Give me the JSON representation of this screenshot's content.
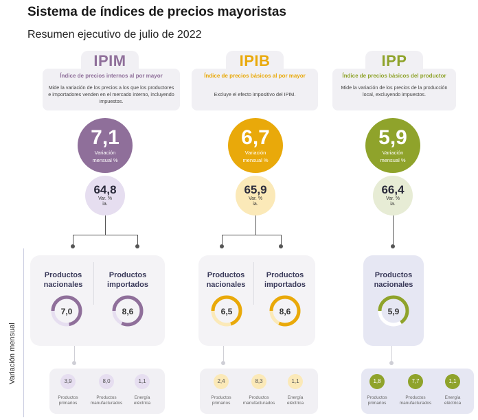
{
  "header": {
    "title": "Sistema de índices de precios mayoristas",
    "subtitle": "Resumen ejecutivo de julio de 2022"
  },
  "side_label": "Variación mensual",
  "colors": {
    "ipim": "#8f6f9a",
    "ipib": "#e9a90a",
    "ipp": "#8fa32b",
    "ipim_light": "#e6def0",
    "ipib_light": "#fbe9b8",
    "ipp_light": "#e7ecd5",
    "ipp_panel": "#e6e7f3"
  },
  "indices": [
    {
      "abbr": "IPIM",
      "name": "Índice de precios internos al por mayor",
      "description": "Mide la variación de los precios a los que los productores e importadores venden en el mercado interno, incluyendo impuestos.",
      "monthly_value": "7,1",
      "monthly_label_line1": "Variación",
      "monthly_label_line2": "mensual %",
      "yoy_value": "64,8",
      "yoy_label_line1": "Var. %",
      "yoy_label_line2": "ia.",
      "products": [
        {
          "title_line1": "Productos",
          "title_line2": "nacionales",
          "value": "7,0",
          "level": 0.72
        },
        {
          "title_line1": "Productos",
          "title_line2": "importados",
          "value": "8,6",
          "level": 0.82
        }
      ],
      "subproducts": [
        {
          "value": "3,9",
          "label_line1": "Productos",
          "label_line2": "primarios"
        },
        {
          "value": "8,0",
          "label_line1": "Productos",
          "label_line2": "manufacturados"
        },
        {
          "value": "1,1",
          "label_line1": "Energía",
          "label_line2": "eléctrica"
        }
      ]
    },
    {
      "abbr": "IPIB",
      "name": "Índice de precios básicos al por mayor",
      "description": "Excluye el efecto impositivo del IPIM.",
      "monthly_value": "6,7",
      "monthly_label_line1": "Variación",
      "monthly_label_line2": "mensual %",
      "yoy_value": "65,9",
      "yoy_label_line1": "Var. %",
      "yoy_label_line2": "ia.",
      "products": [
        {
          "title_line1": "Productos",
          "title_line2": "nacionales",
          "value": "6,5",
          "level": 0.7
        },
        {
          "title_line1": "Productos",
          "title_line2": "importados",
          "value": "8,6",
          "level": 0.82
        }
      ],
      "subproducts": [
        {
          "value": "2,4",
          "label_line1": "Productos",
          "label_line2": "primarios"
        },
        {
          "value": "8,3",
          "label_line1": "Productos",
          "label_line2": "manufacturados"
        },
        {
          "value": "1,1",
          "label_line1": "Energía",
          "label_line2": "eléctrica"
        }
      ]
    },
    {
      "abbr": "IPP",
      "name": "Índice de precios básicos del productor",
      "description": "Mide la variación de los precios de la producción local, excluyendo impuestos.",
      "monthly_value": "5,9",
      "monthly_label_line1": "Variación",
      "monthly_label_line2": "mensual %",
      "yoy_value": "66,4",
      "yoy_label_line1": "Var. %",
      "yoy_label_line2": "ia.",
      "products": [
        {
          "title_line1": "Productos",
          "title_line2": "nacionales",
          "value": "5,9",
          "level": 0.66
        }
      ],
      "subproducts": [
        {
          "value": "1,8",
          "label_line1": "Productos",
          "label_line2": "primarios"
        },
        {
          "value": "7,7",
          "label_line1": "Productos",
          "label_line2": "manufacturados"
        },
        {
          "value": "1,1",
          "label_line1": "Energía",
          "label_line2": "eléctrica"
        }
      ]
    }
  ]
}
